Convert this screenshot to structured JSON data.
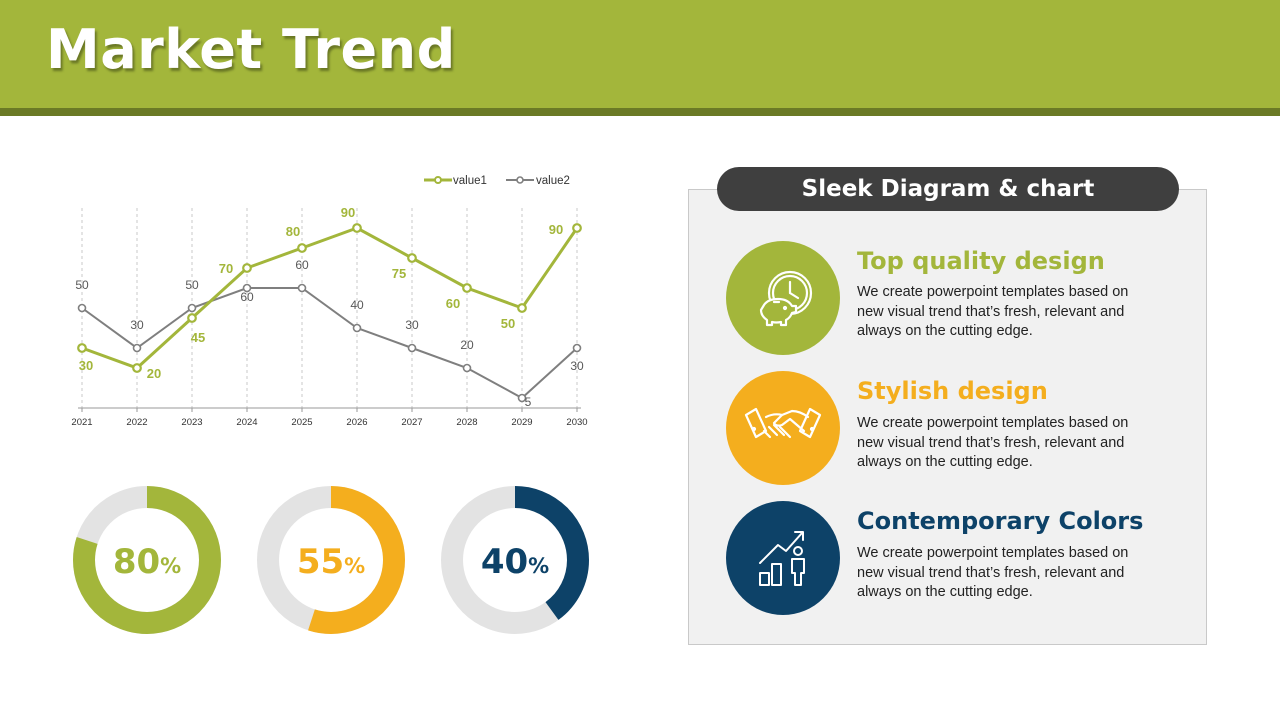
{
  "title": "Market Trend",
  "colors": {
    "green": "#a3b63b",
    "orange": "#f4ae1e",
    "navy": "#0d4268",
    "gray": "#7f7f7f",
    "ring_bg": "#e3e3e3"
  },
  "chart_data": [
    {
      "type": "line",
      "categories": [
        "2021",
        "2022",
        "2023",
        "2024",
        "2025",
        "2026",
        "2027",
        "2028",
        "2029",
        "2030"
      ],
      "series": [
        {
          "name": "value1",
          "values": [
            30,
            20,
            45,
            70,
            80,
            90,
            75,
            60,
            50,
            90
          ]
        },
        {
          "name": "value2",
          "values": [
            50,
            30,
            50,
            60,
            60,
            40,
            30,
            20,
            5,
            30
          ]
        }
      ],
      "ylim": [
        0,
        100
      ],
      "grid": "vertical-dashed",
      "legend": "top-right"
    },
    {
      "type": "pie",
      "label": "80",
      "unit": "%",
      "value": 80,
      "color": "#a3b63b"
    },
    {
      "type": "pie",
      "label": "55",
      "unit": "%",
      "value": 55,
      "color": "#f4ae1e"
    },
    {
      "type": "pie",
      "label": "40",
      "unit": "%",
      "value": 40,
      "color": "#0d4268"
    }
  ],
  "panel": {
    "header": "Sleek Diagram & chart",
    "items": [
      {
        "title": "Top quality design",
        "icon": "clock-piggy-bank-icon",
        "color": "#a3b63b",
        "desc": "We create powerpoint templates based on new visual trend that’s fresh, relevant and always on the cutting edge."
      },
      {
        "title": "Stylish design",
        "icon": "handshake-icon",
        "color": "#f4ae1e",
        "desc": "We create powerpoint templates based on new visual trend that’s fresh, relevant and always on the cutting edge."
      },
      {
        "title": "Contemporary Colors",
        "icon": "growth-person-icon",
        "color": "#0d4268",
        "desc": "We create powerpoint templates based on new visual trend that’s fresh, relevant and always on the cutting edge."
      }
    ]
  }
}
